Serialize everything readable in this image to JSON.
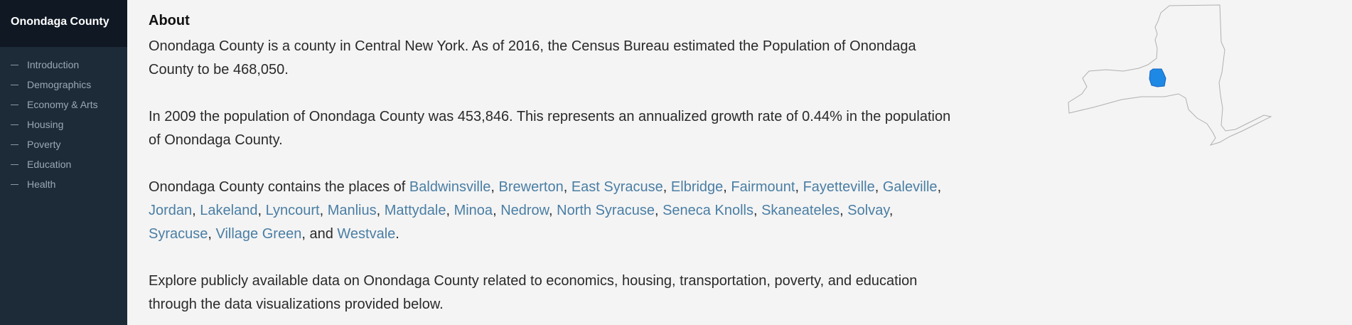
{
  "sidebar": {
    "title": "Onondaga County",
    "items": [
      {
        "label": "Introduction"
      },
      {
        "label": "Demographics"
      },
      {
        "label": "Economy & Arts"
      },
      {
        "label": "Housing"
      },
      {
        "label": "Poverty"
      },
      {
        "label": "Education"
      },
      {
        "label": "Health"
      }
    ]
  },
  "about": {
    "heading": "About",
    "p1": "Onondaga County is a county in Central New York. As of 2016, the Census Bureau estimated the Population of Onondaga County to be 468,050.",
    "p2": "In 2009 the population of Onondaga County was 453,846. This represents an annualized growth rate of 0.44% in the population of Onondaga County.",
    "p3_prefix": "Onondaga County contains the places of ",
    "places": [
      "Baldwinsville",
      "Brewerton",
      "East Syracuse",
      "Elbridge",
      "Fairmount",
      "Fayetteville",
      "Galeville",
      "Jordan",
      "Lakeland",
      "Lyncourt",
      "Manlius",
      "Mattydale",
      "Minoa",
      "Nedrow",
      "North Syracuse",
      "Seneca Knolls",
      "Skaneateles",
      "Solvay",
      "Syracuse",
      "Village Green",
      "Westvale"
    ],
    "p3_and": "and",
    "p4": "Explore publicly available data on Onondaga County related to economics, housing, transportation, poverty, and education through the data visualizations provided below."
  },
  "map": {
    "state_fill": "#f4f4f4",
    "state_stroke": "#b0b0b0",
    "county_fill": "#1e88e5",
    "county_stroke": "#1565c0"
  }
}
